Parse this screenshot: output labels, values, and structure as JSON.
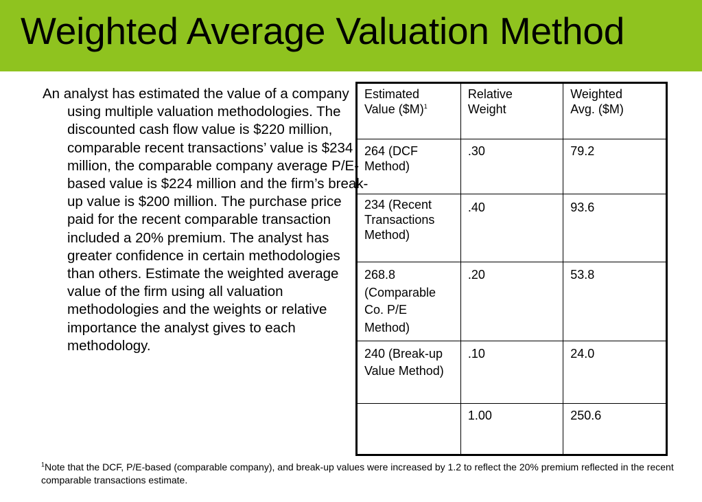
{
  "title": "Weighted Average Valuation Method",
  "body": "An analyst has estimated the value of a company using multiple valuation methodologies.  The discounted cash flow value is $220 million, comparable recent transactions’ value is $234 million, the comparable company average P/E-based value is $224 million and the firm’s break-up value is $200 million. The purchase price paid for the recent comparable transaction included a 20% premium. The analyst has greater confidence in certain methodologies than others. Estimate the weighted average value of the firm using all valuation methodologies and the weights or relative importance the analyst gives to each methodology.",
  "table": {
    "headers": {
      "estimated_line1": "Estimated",
      "estimated_line2": "Value ($M)",
      "estimated_sup": "1",
      "relative_line1": "Relative",
      "relative_line2": "Weight",
      "weighted_line1": "Weighted",
      "weighted_line2": "Avg. ($M)"
    },
    "rows": [
      {
        "value": "264 (DCF Method)",
        "weight": ".30",
        "weighted": "79.2"
      },
      {
        "value_line1": "234 (Recent",
        "value_line2": "Transactions",
        "value_line3": "Method)",
        "weight": ".40",
        "weighted": "93.6"
      },
      {
        "value": "268.8 (Comparable Co. P/E Method)",
        "weight": ".20",
        "weighted": "53.8"
      },
      {
        "value": "240 (Break-up Value Method)",
        "weight": ".10",
        "weighted": "24.0"
      },
      {
        "value": "",
        "weight": "1.00",
        "weighted": "250.6"
      }
    ]
  },
  "footnote": {
    "marker": "1",
    "text": "Note that the DCF, P/E-based (comparable company), and break-up values were increased by 1.2 to reflect the 20% premium reflected in the recent comparable transactions estimate."
  },
  "colors": {
    "title_bar": "#8fc31f"
  }
}
